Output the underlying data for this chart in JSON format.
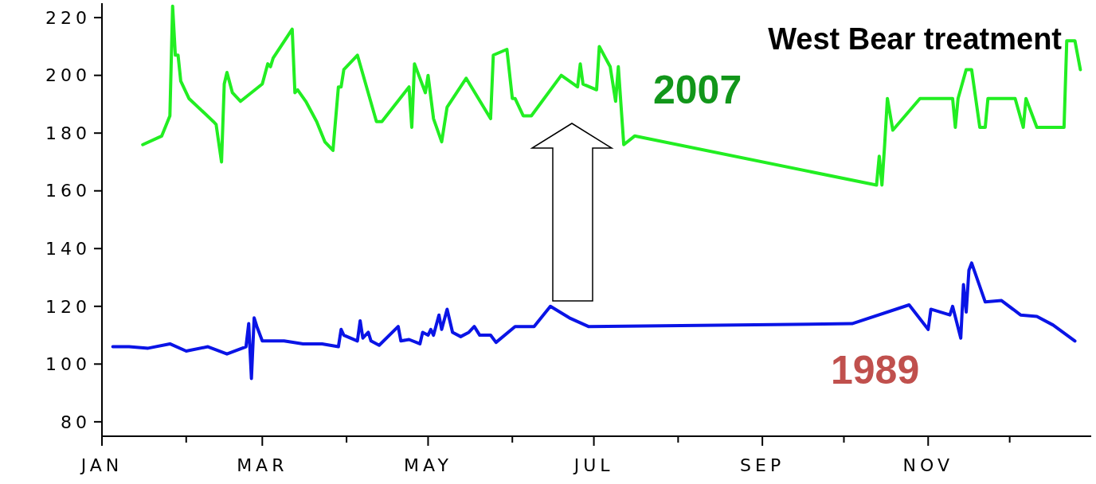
{
  "chart_data": {
    "type": "line",
    "annotations": [
      "West Bear treatment"
    ],
    "xlim": [
      "--01-01",
      "--12-31"
    ],
    "ylim": [
      75,
      225
    ],
    "xticks": [
      {
        "value": "--01-01",
        "label": "JAN"
      },
      {
        "value": "--02-01",
        "label": null
      },
      {
        "value": "--03-01",
        "label": "MAR"
      },
      {
        "value": "--04-01",
        "label": null
      },
      {
        "value": "--05-01",
        "label": "MAY"
      },
      {
        "value": "--06-01",
        "label": null
      },
      {
        "value": "--07-01",
        "label": "JUL"
      },
      {
        "value": "--08-01",
        "label": null
      },
      {
        "value": "--09-01",
        "label": "SEP"
      },
      {
        "value": "--10-01",
        "label": null
      },
      {
        "value": "--11-01",
        "label": "NOV"
      },
      {
        "value": "--12-01",
        "label": null
      }
    ],
    "yticks": [
      80,
      100,
      120,
      140,
      160,
      180,
      200,
      220
    ],
    "grid": false,
    "marker": "none",
    "line_style": "solid",
    "series": [
      {
        "name": "2007",
        "color": "#22ee22",
        "x": [
          "--01-16",
          "--01-23",
          "--01-26",
          "--01-27",
          "--01-28",
          "--01-29",
          "--01-30",
          "--02-02",
          "--02-11",
          "--02-12",
          "--02-14",
          "--02-15",
          "--02-16",
          "--02-18",
          "--02-21",
          "--03-01",
          "--03-03",
          "--03-04",
          "--03-05",
          "--03-12",
          "--03-13",
          "--03-14",
          "--03-17",
          "--03-21",
          "--03-24",
          "--03-27",
          "--03-29",
          "--03-30",
          "--03-31",
          "--04-03",
          "--04-05",
          "--04-12",
          "--04-14",
          "--04-24",
          "--04-25",
          "--04-26",
          "--04-30",
          "--05-01",
          "--05-03",
          "--05-06",
          "--05-08",
          "--05-15",
          "--05-24",
          "--05-25",
          "--05-30",
          "--06-01",
          "--06-02",
          "--06-05",
          "--06-08",
          "--06-19",
          "--06-25",
          "--06-26",
          "--06-27",
          "--07-02",
          "--07-03",
          "--07-07",
          "--07-09",
          "--07-10",
          "--07-12",
          "--07-16",
          "--10-13",
          "--10-14",
          "--10-15",
          "--10-16",
          "--10-17",
          "--10-19",
          "--10-29",
          "--11-10",
          "--11-11",
          "--11-12",
          "--11-15",
          "--11-17",
          "--11-20",
          "--11-22",
          "--11-23",
          "--12-03",
          "--12-06",
          "--12-07",
          "--12-11",
          "--12-21",
          "--12-22",
          "--12-25",
          "--12-27"
        ],
        "values": [
          176,
          179,
          186,
          224,
          207,
          207,
          198,
          192,
          184,
          183,
          170,
          197,
          201,
          194,
          191,
          197,
          204,
          203,
          206,
          216,
          194,
          195,
          191,
          184,
          177,
          174,
          196,
          196,
          202,
          205,
          207,
          184,
          184,
          196,
          182,
          204,
          194,
          200,
          185,
          177,
          189,
          199,
          185,
          207,
          209,
          192,
          192,
          186,
          186,
          200,
          196,
          204,
          197,
          195,
          210,
          203,
          191,
          203,
          176,
          179,
          162,
          172,
          162,
          176,
          192,
          181,
          192,
          192,
          182,
          192,
          202,
          202,
          182,
          182,
          192,
          192,
          182,
          192,
          182,
          182,
          212,
          212,
          202
        ]
      },
      {
        "name": "1989",
        "color": "#0a14e6",
        "x": [
          "--01-05",
          "--01-11",
          "--01-18",
          "--01-26",
          "--02-01",
          "--02-09",
          "--02-16",
          "--02-23",
          "--02-24",
          "--02-25",
          "--02-26",
          "--02-27",
          "--03-01",
          "--03-09",
          "--03-16",
          "--03-23",
          "--03-29",
          "--03-30",
          "--03-31",
          "--04-05",
          "--04-06",
          "--04-07",
          "--04-09",
          "--04-10",
          "--04-13",
          "--04-20",
          "--04-21",
          "--04-24",
          "--04-28",
          "--04-29",
          "--05-01",
          "--05-02",
          "--05-03",
          "--05-05",
          "--05-06",
          "--05-08",
          "--05-10",
          "--05-13",
          "--05-16",
          "--05-18",
          "--05-20",
          "--05-24",
          "--05-26",
          "--06-02",
          "--06-09",
          "--06-15",
          "--06-22",
          "--06-29",
          "--10-04",
          "--10-25",
          "--11-01",
          "--11-02",
          "--11-09",
          "--11-10",
          "--11-13",
          "--11-14",
          "--11-15",
          "--11-16",
          "--11-17",
          "--11-22",
          "--11-28",
          "--12-05",
          "--12-11",
          "--12-17",
          "--12-25"
        ],
        "values": [
          106,
          106,
          105.5,
          107,
          104.5,
          106,
          103.5,
          106,
          114,
          95,
          116,
          113,
          108,
          108,
          107,
          107,
          106,
          112,
          110,
          108,
          115,
          109,
          111,
          108,
          106.5,
          113,
          108,
          108.5,
          107,
          111,
          110,
          112,
          110,
          117,
          112,
          119,
          111,
          109.5,
          111,
          113,
          110,
          110,
          107.5,
          113,
          113,
          120,
          116,
          113,
          114,
          120.5,
          112,
          119,
          117,
          120,
          109,
          127.5,
          118,
          132.5,
          135,
          121.5,
          122,
          117,
          116.5,
          113.5,
          108
        ]
      }
    ]
  }
}
